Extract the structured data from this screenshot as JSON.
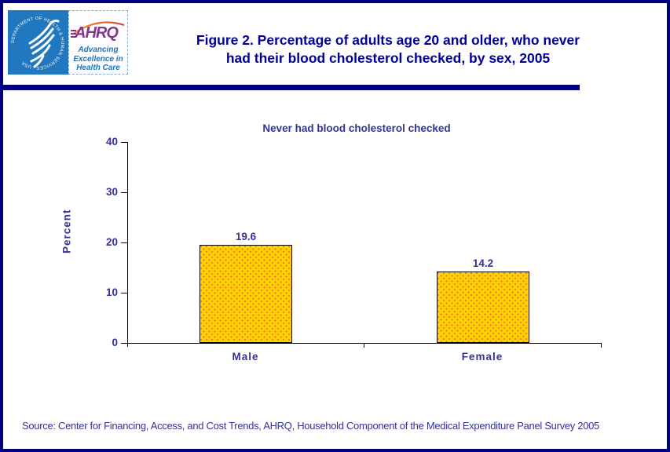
{
  "page": {
    "border_color": "#000080",
    "background": "#FFFFFF"
  },
  "header": {
    "title_line1": "Figure 2. Percentage of adults age 20 and older, who never",
    "title_line2": "had their blood cholesterol checked, by sex, 2005",
    "title_color": "#000099",
    "divider_color": "#000080",
    "logo": {
      "hhs_seal_text": "DEPARTMENT OF HEALTH & HUMAN SERVICES - USA",
      "ahrq_acronym": "AHRQ",
      "tagline_line1": "Advancing",
      "tagline_line2": "Excellence in",
      "tagline_line3": "Health Care",
      "hhs_blue": "#2178BE",
      "ahrq_purple": "#82368C",
      "tagline_blue": "#1B75BC",
      "arc_orange": "#F7941D"
    }
  },
  "chart_data": {
    "type": "bar",
    "title": "Never had blood cholesterol checked",
    "categories": [
      "Male",
      "Female"
    ],
    "values": [
      19.6,
      14.2
    ],
    "value_labels": [
      "19.6",
      "14.2"
    ],
    "xlabel": "",
    "ylabel": "Percent",
    "ylim": [
      0,
      40
    ],
    "yticks": [
      0,
      10,
      20,
      30,
      40
    ],
    "grid": false,
    "legend": "none",
    "bar_fill": "#FFD104",
    "bar_dot_color": "#F26722",
    "bar_border": "#000000",
    "label_color": "#333399"
  },
  "footer": {
    "source": "Source: Center for Financing, Access, and Cost Trends, AHRQ, Household Component of the Medical Expenditure Panel Survey 2005"
  }
}
